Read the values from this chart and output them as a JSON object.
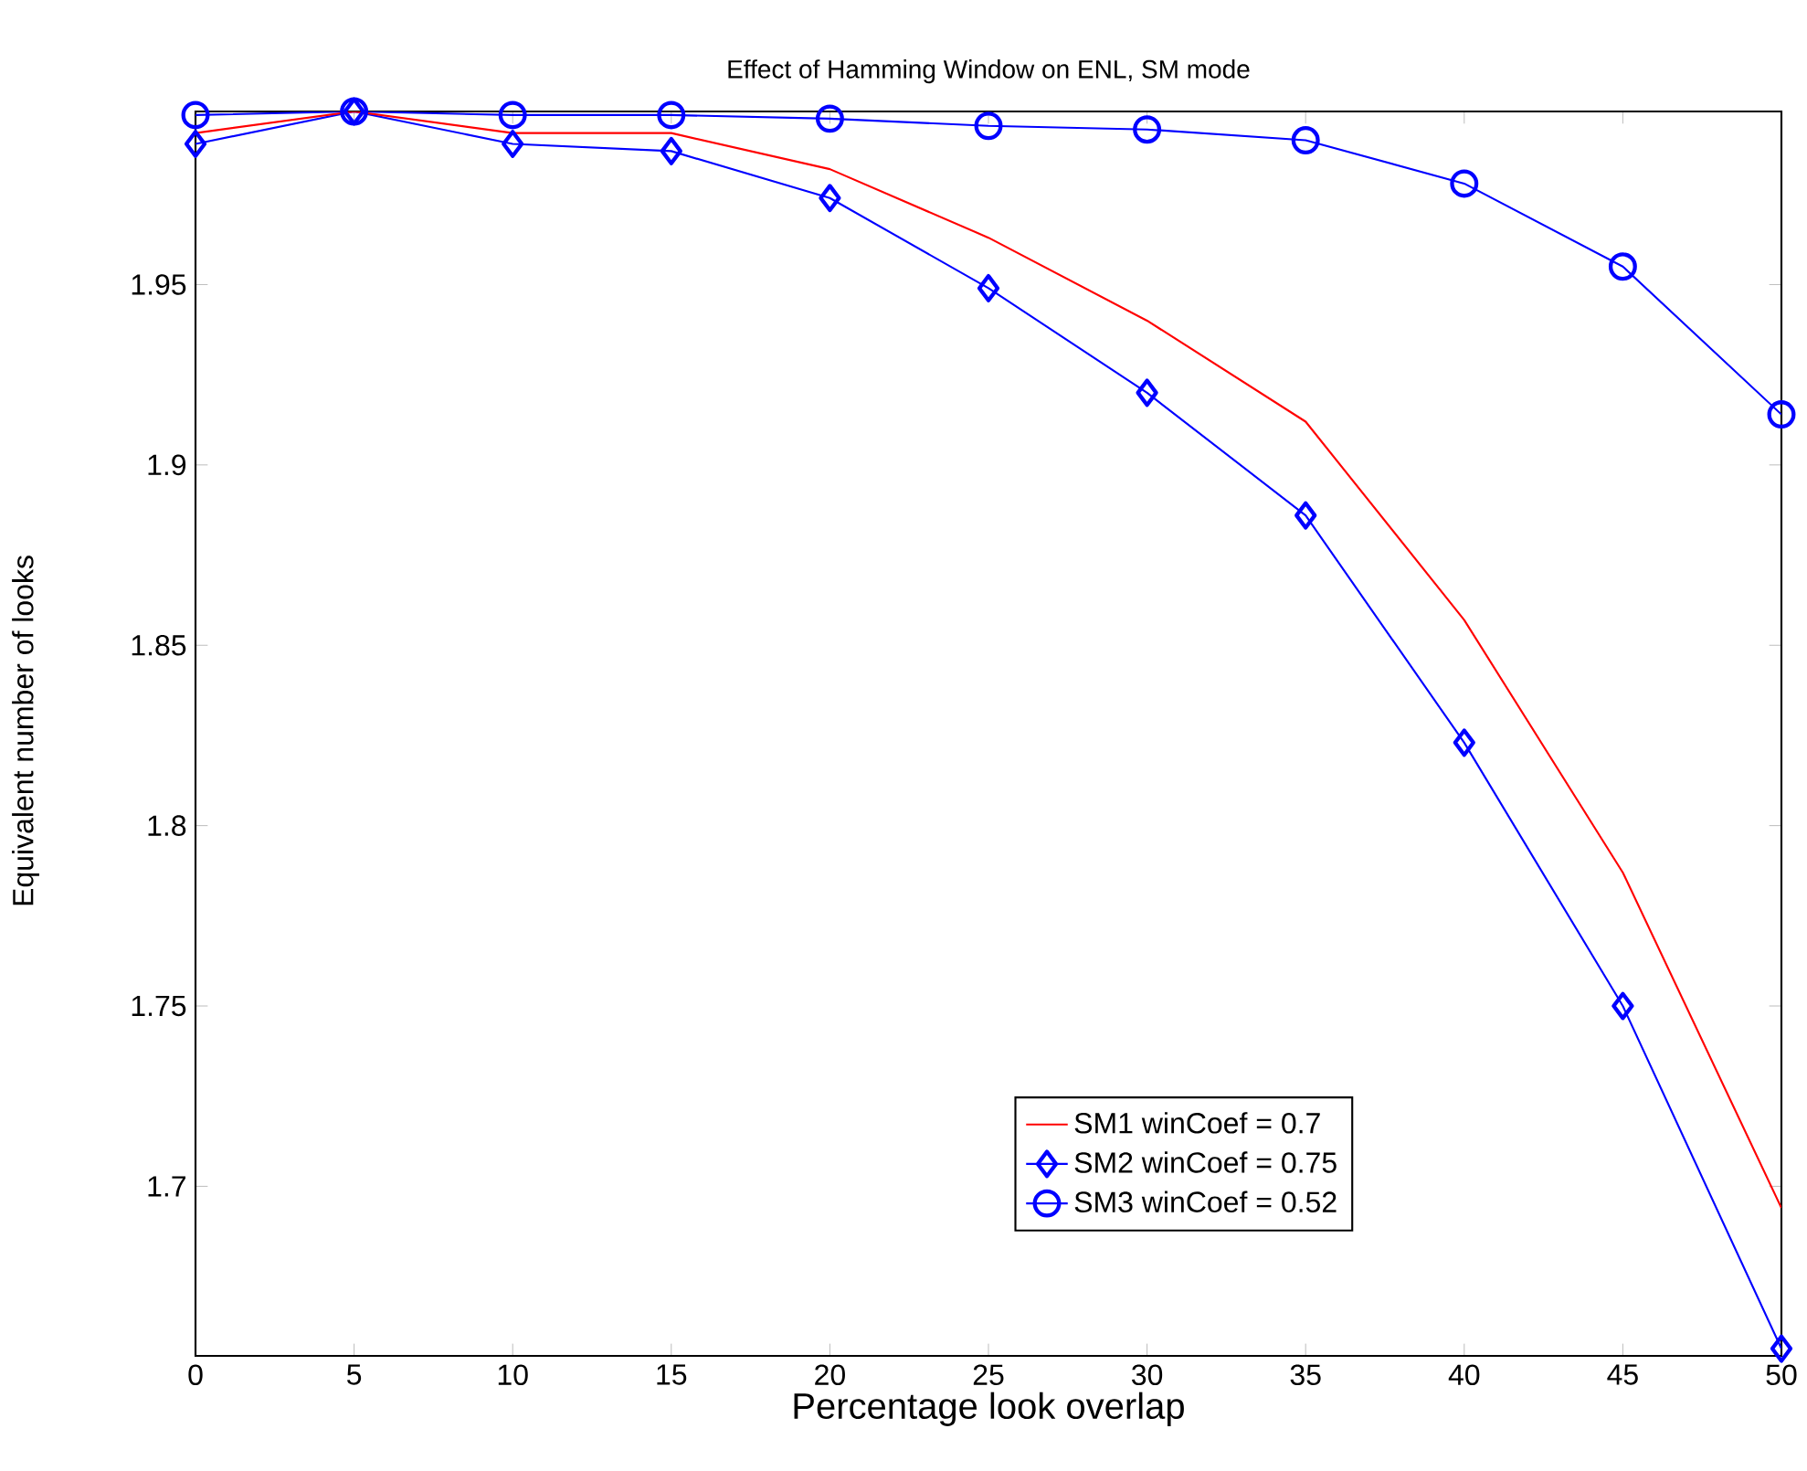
{
  "chart_data": {
    "type": "line",
    "title": "Effect of Hamming Window on ENL, SM mode",
    "xlabel": "Percentage look overlap",
    "ylabel": "Equivalent number of looks",
    "x": [
      0,
      5,
      10,
      15,
      20,
      25,
      30,
      35,
      40,
      45,
      50
    ],
    "series": [
      {
        "name": "SM1 winCoef = 0.7",
        "color": "#ff0000",
        "marker": "none",
        "values": [
          1.992,
          1.998,
          1.992,
          1.992,
          1.982,
          1.963,
          1.94,
          1.912,
          1.857,
          1.787,
          1.694
        ]
      },
      {
        "name": "SM2 winCoef = 0.75",
        "color": "#0000ff",
        "marker": "diamond",
        "values": [
          1.989,
          1.998,
          1.989,
          1.987,
          1.974,
          1.949,
          1.92,
          1.886,
          1.823,
          1.75,
          1.655
        ]
      },
      {
        "name": "SM3 winCoef = 0.52",
        "color": "#0000ff",
        "marker": "circle",
        "values": [
          1.997,
          1.998,
          1.997,
          1.997,
          1.996,
          1.994,
          1.993,
          1.99,
          1.978,
          1.955,
          1.914
        ]
      }
    ],
    "xlim": [
      0,
      50
    ],
    "ylim": [
      1.653,
      1.998
    ],
    "xticks": [
      0,
      5,
      10,
      15,
      20,
      25,
      30,
      35,
      40,
      45,
      50
    ],
    "yticks": [
      1.7,
      1.75,
      1.8,
      1.85,
      1.9,
      1.95
    ],
    "grid": false,
    "legend": "bottom right",
    "line_style": "solid"
  }
}
